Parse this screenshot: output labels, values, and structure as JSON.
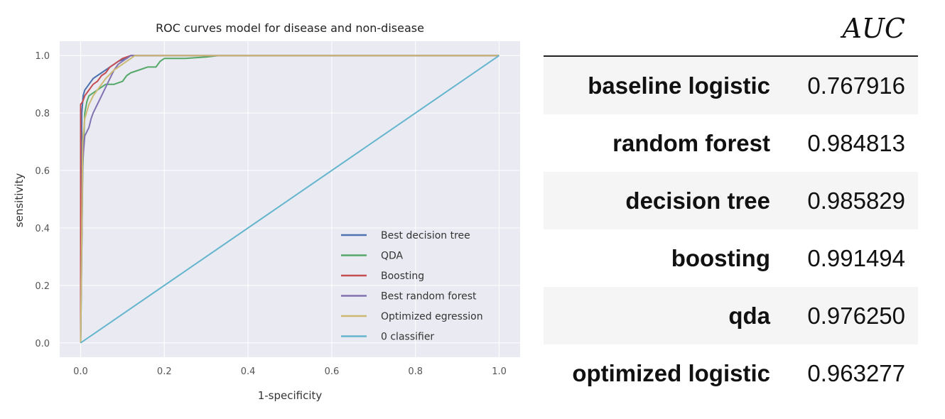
{
  "chart_data": {
    "type": "line",
    "title": "ROC curves model for disease and non-disease",
    "xlabel": "1-specificity",
    "ylabel": "sensitivity",
    "xlim": [
      -0.05,
      1.05
    ],
    "ylim": [
      -0.05,
      1.05
    ],
    "xticks": [
      "0.0",
      "0.2",
      "0.4",
      "0.6",
      "0.8",
      "1.0"
    ],
    "yticks": [
      "0.0",
      "0.2",
      "0.4",
      "0.6",
      "0.8",
      "1.0"
    ],
    "grid": true,
    "legend_position": "lower-right",
    "series": [
      {
        "name": "Best decision tree",
        "color": "#4c72b0",
        "x": [
          0,
          0.003,
          0.006,
          0.01,
          0.015,
          0.02,
          0.03,
          0.04,
          0.05,
          0.06,
          0.07,
          0.08,
          0.09,
          0.1,
          0.11,
          0.12,
          1.0
        ],
        "y": [
          0,
          0.8,
          0.86,
          0.88,
          0.89,
          0.9,
          0.92,
          0.93,
          0.94,
          0.95,
          0.96,
          0.97,
          0.98,
          0.985,
          0.99,
          1.0,
          1.0
        ]
      },
      {
        "name": "QDA",
        "color": "#55a868",
        "x": [
          0,
          0.005,
          0.01,
          0.015,
          0.02,
          0.03,
          0.04,
          0.05,
          0.06,
          0.08,
          0.1,
          0.11,
          0.12,
          0.14,
          0.16,
          0.18,
          0.19,
          0.2,
          0.25,
          0.3,
          0.33,
          1.0
        ],
        "y": [
          0,
          0.6,
          0.8,
          0.84,
          0.86,
          0.87,
          0.88,
          0.89,
          0.9,
          0.9,
          0.91,
          0.93,
          0.94,
          0.95,
          0.96,
          0.96,
          0.98,
          0.99,
          0.99,
          0.995,
          1.0,
          1.0
        ]
      },
      {
        "name": "Boosting",
        "color": "#c44e52",
        "x": [
          0,
          0.0,
          0.005,
          0.01,
          0.02,
          0.03,
          0.04,
          0.05,
          0.06,
          0.07,
          0.08,
          0.1,
          0.12,
          1.0
        ],
        "y": [
          0,
          0.83,
          0.84,
          0.86,
          0.88,
          0.9,
          0.91,
          0.93,
          0.94,
          0.96,
          0.97,
          0.99,
          1.0,
          1.0
        ]
      },
      {
        "name": "Best random forest",
        "color": "#8172b2",
        "x": [
          0,
          0.005,
          0.01,
          0.02,
          0.025,
          0.03,
          0.04,
          0.05,
          0.06,
          0.07,
          0.08,
          0.09,
          0.1,
          0.12,
          1.0
        ],
        "y": [
          0,
          0.63,
          0.72,
          0.75,
          0.78,
          0.8,
          0.83,
          0.86,
          0.89,
          0.92,
          0.95,
          0.97,
          0.98,
          1.0,
          1.0
        ]
      },
      {
        "name": "Optimized egression",
        "color": "#ccb974",
        "x": [
          0,
          0.005,
          0.01,
          0.02,
          0.03,
          0.04,
          0.05,
          0.06,
          0.08,
          0.1,
          0.12,
          0.13,
          1.0
        ],
        "y": [
          0,
          0.7,
          0.78,
          0.83,
          0.86,
          0.88,
          0.9,
          0.92,
          0.95,
          0.97,
          0.99,
          1.0,
          1.0
        ]
      },
      {
        "name": " 0 classifier",
        "color": "#64b5cd",
        "x": [
          0,
          1
        ],
        "y": [
          0,
          1
        ]
      }
    ]
  },
  "auc_table": {
    "header": "AUC",
    "rows": [
      {
        "model": "baseline logistic",
        "value": "0.767916"
      },
      {
        "model": "random forest",
        "value": "0.984813"
      },
      {
        "model": "decision tree",
        "value": "0.985829"
      },
      {
        "model": "boosting",
        "value": "0.991494"
      },
      {
        "model": "qda",
        "value": "0.976250"
      },
      {
        "model": "optimized logistic",
        "value": "0.963277"
      }
    ]
  },
  "colors": {
    "plot_background": "#eaeaf2",
    "grid": "#ffffff"
  }
}
